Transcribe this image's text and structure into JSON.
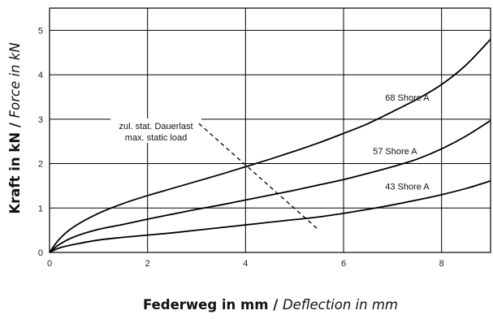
{
  "chart_data": {
    "type": "line",
    "xlabel_main": "Federweg in mm",
    "xlabel_sep": " / ",
    "xlabel_alt": "Deflection in mm",
    "ylabel_main": "Kraft in kN",
    "ylabel_sep": " / ",
    "ylabel_alt": "Force in kN",
    "xlim": [
      0,
      9
    ],
    "ylim": [
      0,
      5.5
    ],
    "xticks": [
      0,
      2,
      4,
      6,
      8
    ],
    "yticks": [
      0,
      1,
      2,
      3,
      4,
      5
    ],
    "x_grid_lines": [
      2,
      4,
      6,
      8
    ],
    "y_grid_lines": [
      1,
      2,
      3,
      4,
      5
    ],
    "grid": true,
    "series": [
      {
        "name": "68 Shore A",
        "x": [
          0,
          0.2,
          0.5,
          1,
          1.5,
          2,
          2.5,
          3,
          3.5,
          4,
          4.5,
          5,
          5.5,
          6,
          6.5,
          7,
          7.5,
          8,
          8.5,
          9
        ],
        "y": [
          0,
          0.3,
          0.58,
          0.88,
          1.1,
          1.28,
          1.44,
          1.6,
          1.76,
          1.93,
          2.1,
          2.28,
          2.47,
          2.68,
          2.9,
          3.17,
          3.45,
          3.78,
          4.22,
          4.8
        ]
      },
      {
        "name": "57 Shore A",
        "x": [
          0,
          0.2,
          0.5,
          1,
          1.5,
          2,
          2.5,
          3,
          3.5,
          4,
          4.5,
          5,
          5.5,
          6,
          6.5,
          7,
          7.5,
          8,
          8.5,
          9
        ],
        "y": [
          0,
          0.18,
          0.35,
          0.52,
          0.63,
          0.75,
          0.86,
          0.97,
          1.07,
          1.18,
          1.29,
          1.4,
          1.52,
          1.64,
          1.78,
          1.93,
          2.1,
          2.33,
          2.62,
          2.97
        ]
      },
      {
        "name": "43 Shore A",
        "x": [
          0,
          0.2,
          0.5,
          1,
          1.5,
          2,
          2.5,
          3,
          3.5,
          4,
          4.5,
          5,
          5.5,
          6,
          6.5,
          7,
          7.5,
          8,
          8.5,
          9
        ],
        "y": [
          0,
          0.1,
          0.18,
          0.28,
          0.34,
          0.39,
          0.44,
          0.5,
          0.56,
          0.62,
          0.68,
          0.74,
          0.8,
          0.88,
          0.97,
          1.07,
          1.18,
          1.3,
          1.44,
          1.61
        ]
      }
    ],
    "annotation": {
      "line1": "zul. stat. Dauerlast",
      "line2": "max. static load",
      "dashed_line": {
        "x": [
          3.05,
          5.5
        ],
        "y": [
          2.9,
          0.5
        ]
      }
    }
  }
}
